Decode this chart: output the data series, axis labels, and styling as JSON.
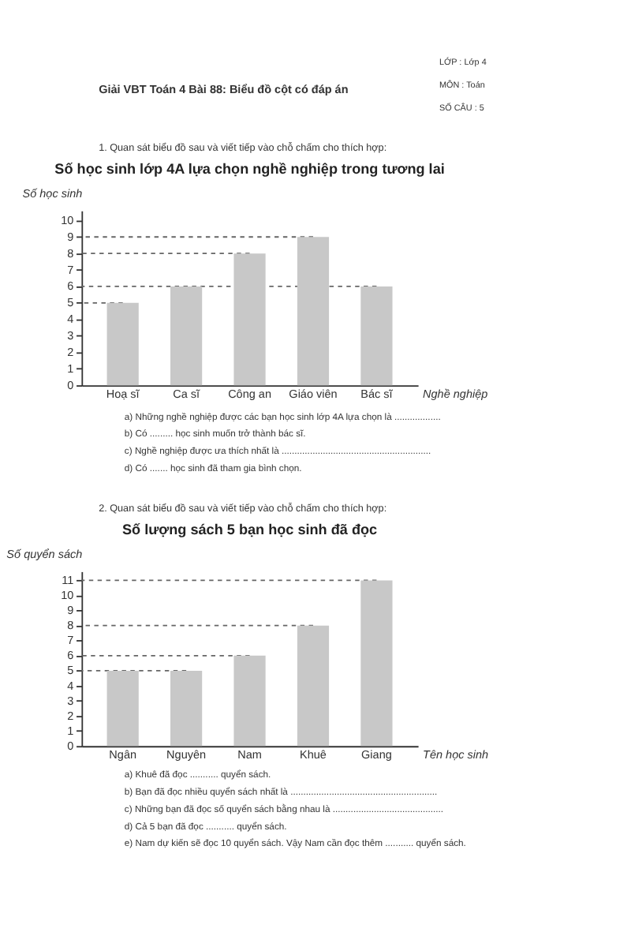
{
  "chart_data": [
    {
      "type": "bar",
      "title": "Số học sinh lớp 4A lựa chọn nghề nghiệp trong tương lai",
      "xlabel": "Nghề nghiệp",
      "ylabel": "Số học sinh",
      "categories": [
        "Hoạ sĩ",
        "Ca sĩ",
        "Công an",
        "Giáo viên",
        "Bác sĩ"
      ],
      "values": [
        5,
        6,
        8,
        9,
        6
      ],
      "color": "#c8c8c8",
      "ylim": [
        0,
        10.6
      ],
      "yticks": [
        0,
        1,
        2,
        3,
        4,
        5,
        6,
        7,
        8,
        9,
        10
      ],
      "grid": false,
      "ref_lines": [
        {
          "axis": "y",
          "value": 5,
          "color": "#666666",
          "line_style": "dashed"
        },
        {
          "axis": "y",
          "value": 6,
          "color": "#666666",
          "line_style": "dashed"
        },
        {
          "axis": "y",
          "value": 8,
          "color": "#666666",
          "line_style": "dashed"
        },
        {
          "axis": "y",
          "value": 9,
          "color": "#666666",
          "line_style": "dashed"
        }
      ],
      "annotations": [
        "Giải VBT Toán 4 Bài 88: Biểu đồ cột có đáp án",
        "LỚP :   Lớp 4",
        "MÔN :   Toán",
        "SỐ CÂU :   5",
        "1.   Quan sát biểu đồ sau và viết tiếp vào chỗ chấm cho thích hợp:",
        "a) Những nghề nghiệp được các bạn học sinh lớp 4A lựa chọn là ..................",
        "b) Có ......... học sinh muốn trở thành bác sĩ.",
        "c) Nghề nghiệp được ưa thích nhất là ..........................................................",
        "d) Có ....... học sinh đã tham gia bình chọn."
      ]
    },
    {
      "type": "bar",
      "title": "Số lượng sách 5 bạn học sinh đã đọc",
      "xlabel": "Tên học sinh",
      "ylabel": "Số quyển sách",
      "categories": [
        "Ngân",
        "Nguyên",
        "Nam",
        "Khuê",
        "Giang"
      ],
      "values": [
        5,
        5,
        6,
        8,
        11
      ],
      "color": "#c8c8c8",
      "ylim": [
        0,
        11.6
      ],
      "yticks": [
        0,
        1,
        2,
        3,
        4,
        5,
        6,
        7,
        8,
        9,
        10,
        11
      ],
      "grid": false,
      "ref_lines": [
        {
          "axis": "y",
          "value": 5,
          "color": "#666666",
          "line_style": "dashed"
        },
        {
          "axis": "y",
          "value": 6,
          "color": "#666666",
          "line_style": "dashed"
        },
        {
          "axis": "y",
          "value": 8,
          "color": "#666666",
          "line_style": "dashed"
        },
        {
          "axis": "y",
          "value": 11,
          "color": "#666666",
          "line_style": "dashed"
        }
      ],
      "annotations": [
        "2.   Quan sát biểu đồ sau và viết tiếp vào chỗ chấm cho thích hợp:",
        "a) Khuê đã đọc ........... quyển sách.",
        "b) Bạn đã đọc nhiều quyển sách nhất là .........................................................",
        "c) Những bạn đã đọc số quyển sách bằng nhau là ...........................................",
        "d) Cả 5 bạn đã đọc ........... quyển sách.",
        "e) Nam dự kiến sẽ đọc 10 quyển sách. Vậy Nam cần đọc thêm ........... quyển sách."
      ]
    }
  ]
}
